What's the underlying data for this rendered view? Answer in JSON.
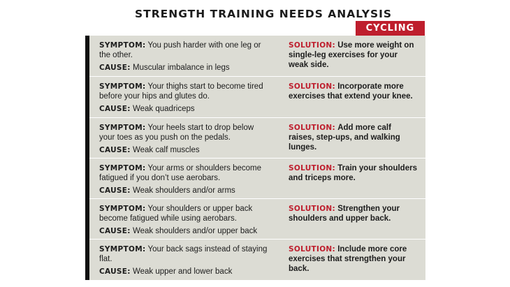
{
  "title": "STRENGTH TRAINING NEEDS ANALYSIS",
  "category": "CYCLING",
  "labels": {
    "symptom": "SYMPTOM:",
    "cause": "CAUSE:",
    "solution": "SOLUTION:"
  },
  "colors": {
    "accent": "#be1e2d",
    "row_bg": "#dcdcd4",
    "bar": "#111111"
  },
  "rows": [
    {
      "symptom": "You push harder with one leg or the other.",
      "cause": "Muscular imbalance in legs",
      "solution": "Use more weight on single-leg exercises for your weak side."
    },
    {
      "symptom": "Your thighs start to become tired before your hips and glutes do.",
      "cause": "Weak quadriceps",
      "solution": "Incorporate more exercises that extend your knee."
    },
    {
      "symptom": "Your heels start to drop below your toes as you push on the pedals.",
      "cause": "Weak calf muscles",
      "solution": "Add more calf raises, step-ups, and walking lunges."
    },
    {
      "symptom": "Your arms or shoulders become fatigued if you don’t use aerobars.",
      "cause": "Weak shoulders and/or arms",
      "solution": "Train your shoulders and triceps more."
    },
    {
      "symptom": "Your shoulders or upper back become fatigued while using aerobars.",
      "cause": "Weak shoulders and/or upper back",
      "solution": "Strengthen your shoulders and upper back."
    },
    {
      "symptom": "Your back sags instead of staying flat.",
      "cause": "Weak upper and lower back",
      "solution": "Include more core exercises that strengthen your back."
    }
  ]
}
